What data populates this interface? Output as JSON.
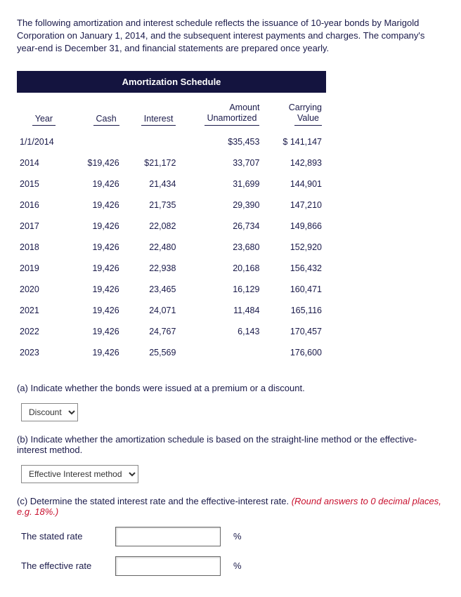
{
  "intro": "The following amortization and interest schedule reflects the issuance of 10-year bonds by Marigold Corporation on January 1, 2014, and the subsequent interest payments and charges. The company's year-end is December 31, and financial statements are prepared once yearly.",
  "table": {
    "title": "Amortization Schedule",
    "headers": {
      "year": "Year",
      "cash": "Cash",
      "interest": "Interest",
      "amount_line1": "Amount",
      "amount_line2": "Unamortized",
      "carry_line1": "Carrying",
      "carry_line2": "Value"
    },
    "rows": [
      {
        "year": "1/1/2014",
        "cash": "",
        "interest": "",
        "unamort": "$35,453",
        "carry": "$ 141,147"
      },
      {
        "year": "2014",
        "cash": "$19,426",
        "interest": "$21,172",
        "unamort": "33,707",
        "carry": "142,893"
      },
      {
        "year": "2015",
        "cash": "19,426",
        "interest": "21,434",
        "unamort": "31,699",
        "carry": "144,901"
      },
      {
        "year": "2016",
        "cash": "19,426",
        "interest": "21,735",
        "unamort": "29,390",
        "carry": "147,210"
      },
      {
        "year": "2017",
        "cash": "19,426",
        "interest": "22,082",
        "unamort": "26,734",
        "carry": "149,866"
      },
      {
        "year": "2018",
        "cash": "19,426",
        "interest": "22,480",
        "unamort": "23,680",
        "carry": "152,920"
      },
      {
        "year": "2019",
        "cash": "19,426",
        "interest": "22,938",
        "unamort": "20,168",
        "carry": "156,432"
      },
      {
        "year": "2020",
        "cash": "19,426",
        "interest": "23,465",
        "unamort": "16,129",
        "carry": "160,471"
      },
      {
        "year": "2021",
        "cash": "19,426",
        "interest": "24,071",
        "unamort": "11,484",
        "carry": "165,116"
      },
      {
        "year": "2022",
        "cash": "19,426",
        "interest": "24,767",
        "unamort": "6,143",
        "carry": "170,457"
      },
      {
        "year": "2023",
        "cash": "19,426",
        "interest": "25,569",
        "unamort": "",
        "carry": "176,600"
      }
    ]
  },
  "qA": {
    "prompt": "(a) Indicate whether the bonds were issued at a premium or a discount.",
    "selected": "Discount"
  },
  "qB": {
    "prompt": "(b) Indicate whether the amortization schedule is based on the straight-line method or the effective-interest method.",
    "selected": "Effective Interest method"
  },
  "qC": {
    "prompt_main": "(c) Determine the stated interest rate and the effective-interest rate. ",
    "prompt_hint": "(Round answers to 0 decimal places, e.g. 18%.)",
    "stated_label": "The stated rate",
    "effective_label": "The effective rate",
    "percent": "%"
  }
}
